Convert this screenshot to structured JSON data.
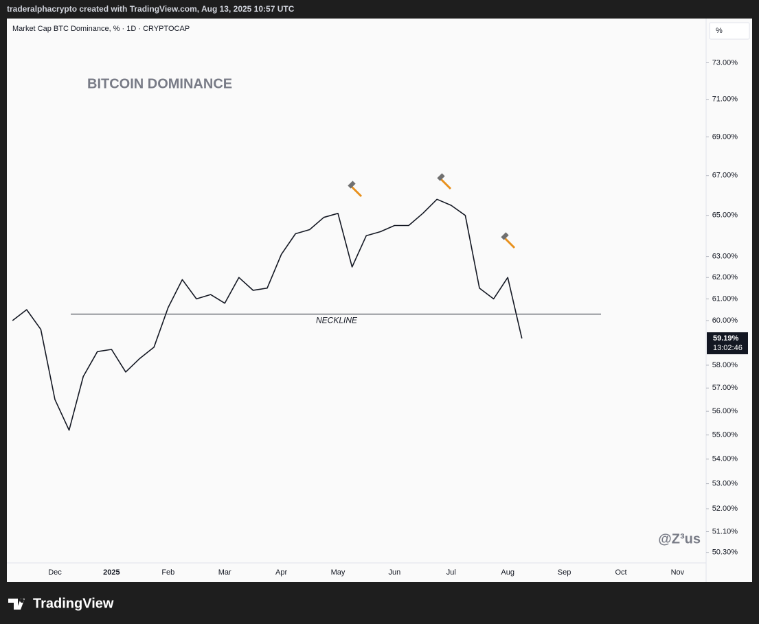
{
  "header": {
    "attribution": "traderalphacrypto created with TradingView.com, Aug 13, 2025 10:57 UTC",
    "logo": "TradingView"
  },
  "chart_data": {
    "type": "line",
    "title": "Market Cap BTC Dominance, % · 1D · CRYPTOCAP",
    "annotation": "BITCOIN DOMINANCE",
    "watermark": "@Z³us",
    "scale_button": "%",
    "categories": [
      null,
      null,
      null,
      "Dec",
      null,
      null,
      null,
      "2025",
      null,
      null,
      null,
      "Feb",
      null,
      null,
      null,
      "Mar",
      null,
      null,
      null,
      "Apr",
      null,
      null,
      null,
      "May",
      null,
      null,
      null,
      "Jun",
      null,
      null,
      null,
      "Jul",
      null,
      null,
      null,
      "Aug",
      null,
      null,
      null,
      "Sep",
      null,
      null,
      null,
      "Oct",
      null,
      null,
      null,
      "Nov"
    ],
    "series": [
      {
        "name": "BTC Dominance",
        "color": "#131722",
        "values": [
          60.0,
          60.5,
          59.6,
          56.5,
          55.2,
          57.5,
          58.6,
          58.7,
          57.7,
          58.3,
          58.8,
          60.6,
          61.9,
          61.0,
          61.2,
          60.8,
          62.0,
          61.4,
          61.5,
          63.1,
          64.1,
          64.3,
          64.9,
          65.1,
          62.5,
          64.0,
          64.2,
          64.5,
          64.5,
          65.1,
          65.8,
          65.5,
          65.0,
          61.5,
          61.0,
          62.0,
          59.19,
          null,
          null,
          null,
          null,
          null,
          null,
          null,
          null,
          null,
          null,
          null
        ]
      }
    ],
    "last_value_label": "59.19%",
    "countdown": "13:02:46",
    "neckline": {
      "label": "NECKLINE",
      "value": 60.3
    },
    "log_scale": true,
    "ylim": [
      49.9,
      75.5
    ],
    "yticks": [
      {
        "value": 73,
        "label": "73.00%"
      },
      {
        "value": 71,
        "label": "71.00%"
      },
      {
        "value": 69,
        "label": "69.00%"
      },
      {
        "value": 67,
        "label": "67.00%"
      },
      {
        "value": 65,
        "label": "65.00%"
      },
      {
        "value": 63,
        "label": "63.00%"
      },
      {
        "value": 62,
        "label": "62.00%"
      },
      {
        "value": 61,
        "label": "61.00%"
      },
      {
        "value": 60,
        "label": "60.00%"
      },
      {
        "value": 58,
        "label": "58.00%"
      },
      {
        "value": 57,
        "label": "57.00%"
      },
      {
        "value": 56,
        "label": "56.00%"
      },
      {
        "value": 55,
        "label": "55.00%"
      },
      {
        "value": 54,
        "label": "54.00%"
      },
      {
        "value": 53,
        "label": "53.00%"
      },
      {
        "value": 52,
        "label": "52.00%"
      },
      {
        "value": 51.1,
        "label": "51.10%"
      },
      {
        "value": 50.3,
        "label": "50.30%"
      }
    ],
    "grid": false
  }
}
